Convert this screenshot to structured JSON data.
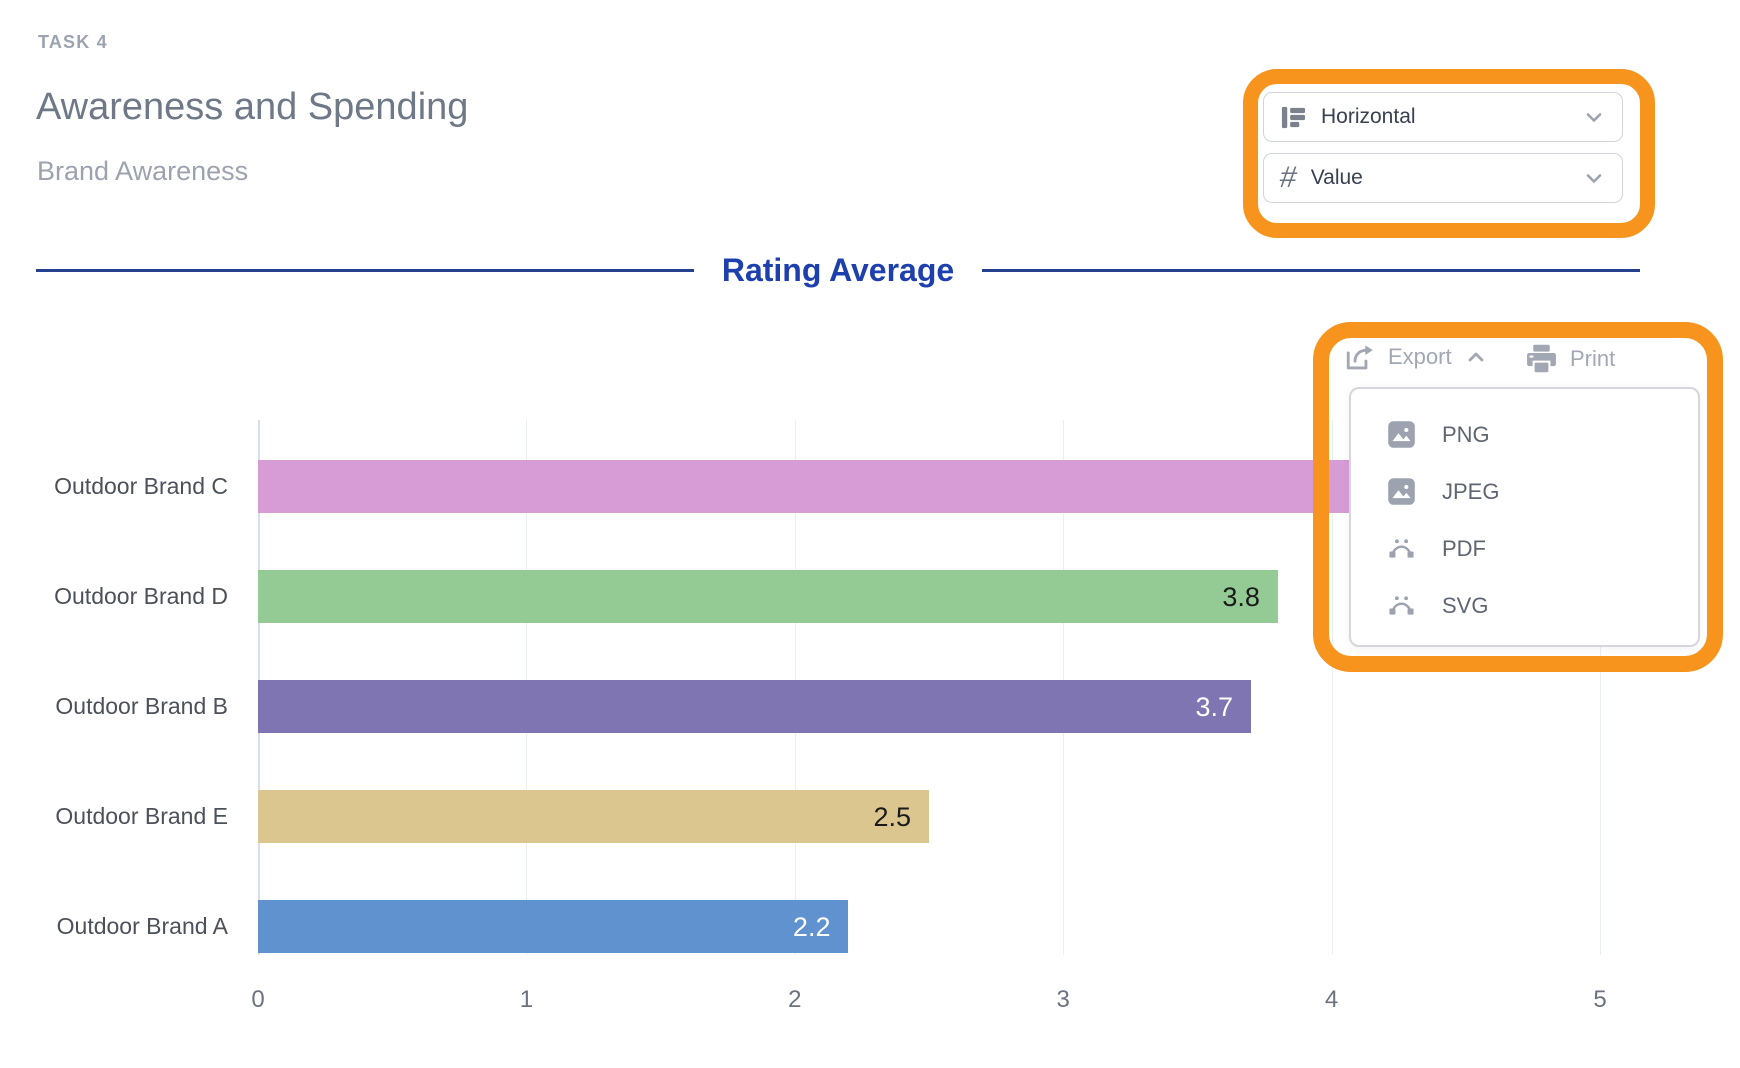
{
  "header": {
    "task_label": "TASK 4",
    "title": "Awareness and Spending",
    "subtitle": "Brand Awareness"
  },
  "controls": {
    "orientation_dropdown": {
      "value": "Horizontal",
      "icon": "horizontal-bars-icon"
    },
    "value_mode_dropdown": {
      "value": "Value",
      "icon": "hash-icon",
      "hash_glyph": "#"
    }
  },
  "toolbar": {
    "export_label": "Export",
    "print_label": "Print"
  },
  "export_menu": {
    "items": [
      {
        "label": "PNG",
        "icon": "image-icon"
      },
      {
        "label": "JPEG",
        "icon": "image-icon"
      },
      {
        "label": "PDF",
        "icon": "vector-icon"
      },
      {
        "label": "SVG",
        "icon": "vector-icon"
      }
    ]
  },
  "chart_data": {
    "type": "bar",
    "orientation": "horizontal",
    "title": "Rating Average",
    "categories": [
      "Outdoor Brand C",
      "Outdoor Brand D",
      "Outdoor Brand B",
      "Outdoor Brand E",
      "Outdoor Brand A"
    ],
    "values": [
      4.2,
      3.8,
      3.7,
      2.5,
      2.2
    ],
    "value_labels": [
      "",
      "3.8",
      "3.7",
      "2.5",
      "2.2"
    ],
    "bar_colors": [
      "#D79BD5",
      "#94CB94",
      "#7F75B2",
      "#DCC690",
      "#6092D0"
    ],
    "value_label_colors": [
      "#1A1A1A",
      "#1A1A1A",
      "#FFFFFF",
      "#1A1A1A",
      "#FFFFFF"
    ],
    "xlim": [
      0,
      5
    ],
    "x_ticks": [
      "0",
      "1",
      "2",
      "3",
      "4",
      "5"
    ],
    "grid": true,
    "legend": "none",
    "note": "Outdoor Brand C bar end and its value label are occluded by the open export menu; 4.2 is estimated (bar visibly extends past the 4 gridline)."
  },
  "colors": {
    "annotation_orange": "#F7941E",
    "divider_blue": "#1E40AF",
    "divider_rule": "#24418F",
    "title_gray": "#6E7887",
    "muted_gray": "#9CA3AF"
  }
}
